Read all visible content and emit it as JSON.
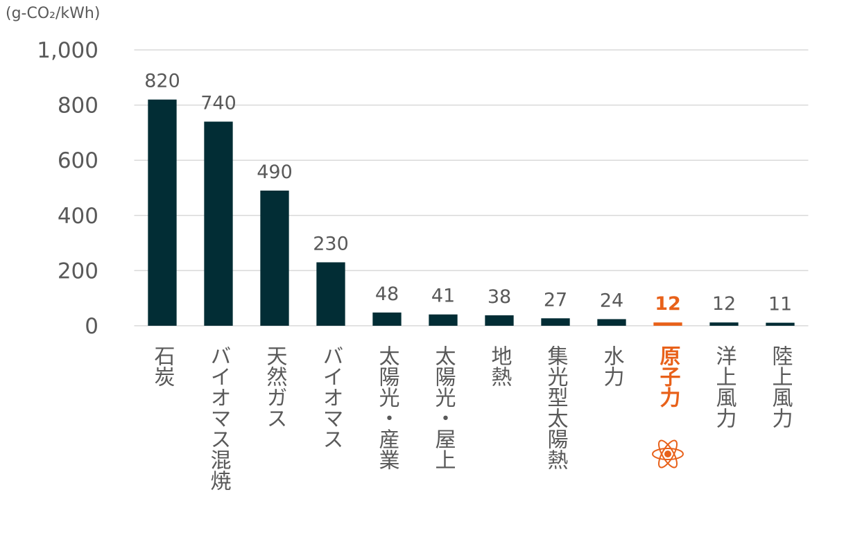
{
  "chart_data": {
    "type": "bar",
    "y_axis_label": "(g-CO₂/kWh)",
    "categories": [
      "石炭",
      "バイオマス混焼",
      "天然ガス",
      "バイオマス",
      "太陽光・産業",
      "太陽光・屋上",
      "地熱",
      "集光型太陽熱",
      "水力",
      "原子力",
      "洋上風力",
      "陸上風力"
    ],
    "values": [
      820,
      740,
      490,
      230,
      48,
      41,
      38,
      27,
      24,
      12,
      12,
      11
    ],
    "color": "#022d35",
    "colors": [
      "#022d35",
      "#022d35",
      "#022d35",
      "#022d35",
      "#022d35",
      "#022d35",
      "#022d35",
      "#022d35",
      "#022d35",
      "#e8611a",
      "#022d35",
      "#022d35"
    ],
    "ylim": [
      0,
      1000
    ],
    "yticks": [
      0,
      200,
      400,
      600,
      800,
      {
        "value": 1000,
        "label": "1,000"
      }
    ],
    "grid": true
  }
}
